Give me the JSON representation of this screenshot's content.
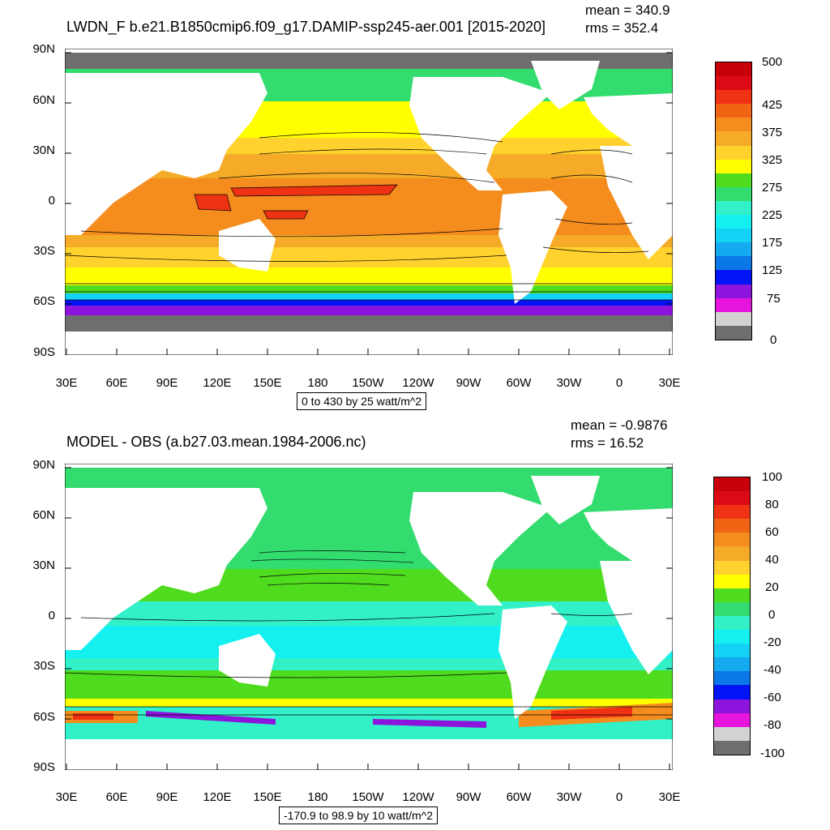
{
  "panels": [
    {
      "id": "top",
      "title": "LWDN_F b.e21.B1850cmip6.f09_g17.DAMIP-ssp245-aer.001 [2015-2020]",
      "mean_text": "mean = 340.9",
      "rms_text": "rms = 352.4",
      "contour_info": "0 to 430 by 25 watt/m^2",
      "colorbar": {
        "colors": [
          "#c8000a",
          "#dc0a14",
          "#f03214",
          "#f06414",
          "#f58c1e",
          "#f5aa28",
          "#ffd22d",
          "#ffff00",
          "#50dc1e",
          "#32dc6e",
          "#32f0c8",
          "#14f0f0",
          "#14d2f5",
          "#14aaf0",
          "#0a78e6",
          "#0014f5",
          "#8c14dc",
          "#e614dc",
          "#d2d2d2",
          "#6e6e6e"
        ],
        "labels": [
          "500",
          "425",
          "375",
          "325",
          "275",
          "225",
          "175",
          "125",
          "75",
          "0"
        ]
      }
    },
    {
      "id": "bottom",
      "title": "MODEL - OBS (a.b27.03.mean.1984-2006.nc)",
      "mean_text": "mean = -0.9876",
      "rms_text": "rms = 16.52",
      "contour_info": "-170.9 to 98.9 by 10 watt/m^2",
      "colorbar": {
        "colors": [
          "#c8000a",
          "#dc0a14",
          "#f03214",
          "#f06414",
          "#f58c1e",
          "#f5aa28",
          "#ffd22d",
          "#ffff00",
          "#50dc1e",
          "#32dc6e",
          "#32f0c8",
          "#14f0f0",
          "#14d2f5",
          "#14aaf0",
          "#0a78e6",
          "#0014f5",
          "#8c14dc",
          "#e614dc",
          "#d2d2d2",
          "#6e6e6e"
        ],
        "labels": [
          "100",
          "80",
          "60",
          "40",
          "20",
          "0",
          "-20",
          "-40",
          "-60",
          "-80",
          "-100"
        ]
      }
    }
  ],
  "axes": {
    "lat_labels": [
      "90N",
      "60N",
      "30N",
      "0",
      "30S",
      "60S",
      "90S"
    ],
    "lon_labels": [
      "30E",
      "60E",
      "90E",
      "120E",
      "150E",
      "180",
      "150W",
      "120W",
      "90W",
      "60W",
      "30W",
      "0",
      "30E"
    ]
  }
}
